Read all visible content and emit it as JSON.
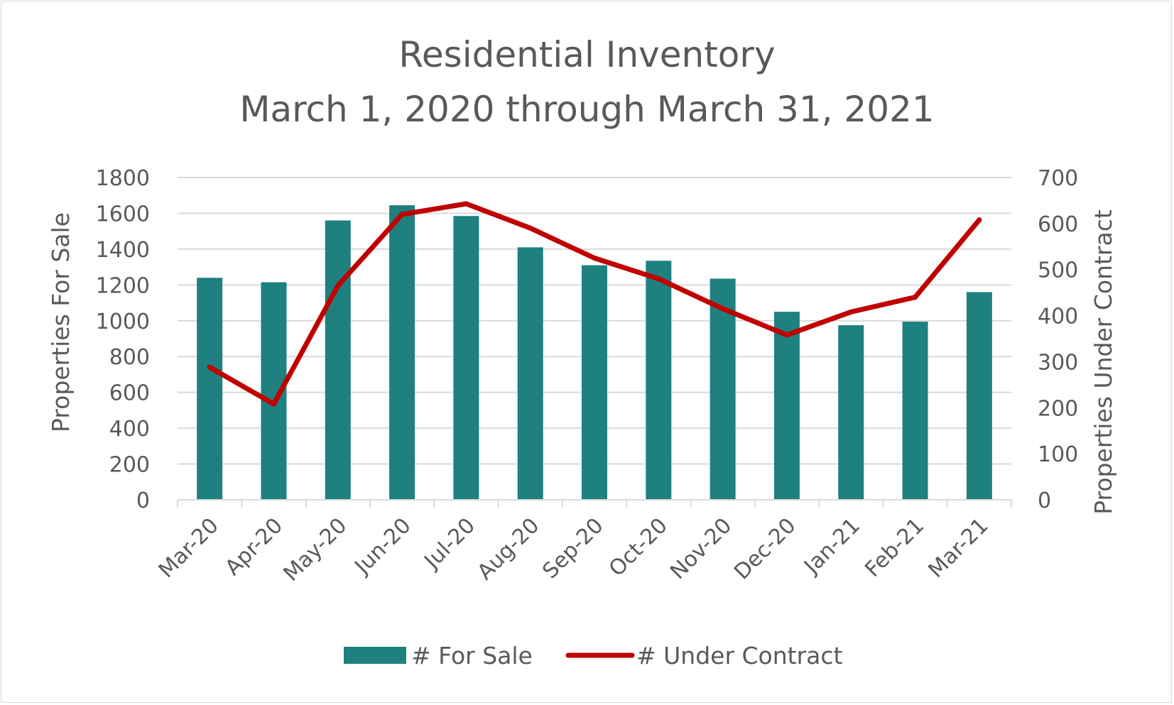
{
  "chart_data": {
    "type": "bar",
    "title": "Residential Inventory",
    "subtitle": "March 1, 2020 through March 31, 2021",
    "categories": [
      "Mar-20",
      "Apr-20",
      "May-20",
      "Jun-20",
      "Jul-20",
      "Aug-20",
      "Sep-20",
      "Oct-20",
      "Nov-20",
      "Dec-20",
      "Jan-21",
      "Feb-21",
      "Mar-21"
    ],
    "series": [
      {
        "name": "# For Sale",
        "type": "bar",
        "axis": "left",
        "color": "#1f8080",
        "values": [
          1240,
          1215,
          1560,
          1645,
          1585,
          1410,
          1310,
          1335,
          1235,
          1050,
          975,
          995,
          1160
        ]
      },
      {
        "name": "# Under Contract",
        "type": "line",
        "axis": "right",
        "color": "#c00000",
        "values": [
          288,
          208,
          465,
          620,
          643,
          590,
          525,
          480,
          415,
          358,
          408,
          440,
          608
        ]
      }
    ],
    "ylabel": "Properties For Sale",
    "ylim": [
      0,
      1800
    ],
    "yticks": [
      "0",
      "200",
      "400",
      "600",
      "800",
      "1000",
      "1200",
      "1400",
      "1600",
      "1800"
    ],
    "y2label": "Properties Under Contract",
    "y2lim": [
      0,
      700
    ],
    "y2ticks": [
      "0",
      "100",
      "200",
      "300",
      "400",
      "500",
      "600",
      "700"
    ],
    "grid": true,
    "legend": "bottom"
  }
}
